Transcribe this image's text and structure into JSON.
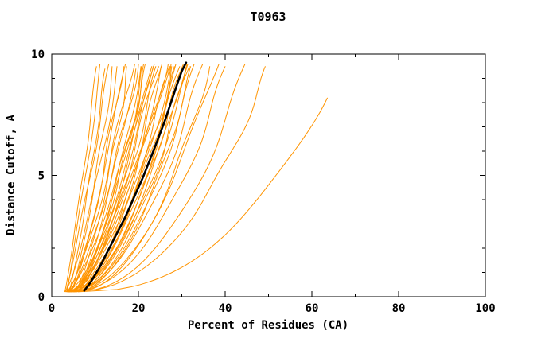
{
  "window": {
    "background": "#ffffff"
  },
  "chart_data": {
    "type": "line",
    "title": "T0963",
    "xlabel": "Percent of Residues (CA)",
    "ylabel": "Distance Cutoff, A",
    "xlim": [
      0,
      100
    ],
    "ylim": [
      0,
      10
    ],
    "x_ticks": [
      0,
      20,
      40,
      60,
      80,
      100
    ],
    "x_minor_ticks": [
      10,
      30,
      50,
      70,
      90
    ],
    "y_ticks": [
      0,
      5,
      10
    ],
    "y_minor_ticks": [
      1,
      2,
      3,
      4,
      6,
      7,
      8,
      9
    ],
    "grid": false,
    "legend": "none",
    "colors": {
      "model_lines": "#ff9400",
      "best_model_line": "#000000",
      "axis": "#000000",
      "background": "#ffffff"
    },
    "series_description": {
      "orange_curves": "Ensemble of model accuracy curves (distance cutoff vs percent of CA residues). Param format per curve: [x_start, x_top, shape_exp, y_top, wiggle_amp, wiggle_freq, wiggle_phase]; x(y) = x_start + (x_top - x_start)*((y-0.2)/(y_top-0.2))^shape_exp + wiggle_amp*sin(wiggle_freq*y+wiggle_phase)*(y/10)",
      "black_curve": "Highlighted (consensus/best) model curve, explicit [percent, distance_cutoff] points"
    },
    "curve_start_y": 0.2,
    "orange_curves": [
      [
        3.0,
        10.5,
        0.9,
        9.5,
        0.3,
        1.2,
        0.5
      ],
      [
        3.5,
        11.5,
        0.95,
        9.6,
        0.4,
        0.9,
        2.1
      ],
      [
        4.0,
        12.5,
        0.85,
        9.45,
        0.3,
        1.5,
        4.0
      ],
      [
        3.2,
        13.5,
        0.9,
        9.62,
        0.5,
        1.1,
        1.3
      ],
      [
        4.5,
        14.2,
        0.8,
        9.5,
        0.4,
        1.4,
        3.2
      ],
      [
        3.0,
        15.5,
        0.75,
        9.58,
        0.5,
        1.0,
        0.8
      ],
      [
        4.2,
        16.2,
        0.7,
        9.5,
        0.6,
        1.3,
        2.6
      ],
      [
        3.6,
        17.0,
        0.72,
        9.63,
        0.4,
        0.8,
        5.0
      ],
      [
        5.0,
        17.8,
        0.68,
        9.55,
        0.5,
        1.6,
        1.9
      ],
      [
        3.3,
        18.5,
        0.7,
        9.6,
        0.7,
        1.1,
        3.7
      ],
      [
        4.8,
        19.2,
        0.65,
        9.48,
        0.5,
        0.9,
        0.3
      ],
      [
        3.9,
        20.0,
        0.72,
        9.62,
        0.6,
        1.4,
        2.2
      ],
      [
        5.5,
        20.7,
        0.66,
        9.55,
        0.4,
        1.2,
        4.5
      ],
      [
        4.1,
        21.4,
        0.6,
        9.58,
        0.7,
        1.0,
        1.0
      ],
      [
        3.4,
        22.1,
        0.68,
        9.64,
        0.5,
        1.5,
        3.0
      ],
      [
        5.2,
        22.8,
        0.62,
        9.5,
        0.6,
        0.8,
        5.5
      ],
      [
        4.6,
        23.5,
        0.64,
        9.6,
        0.4,
        1.3,
        0.6
      ],
      [
        3.8,
        24.2,
        0.6,
        9.55,
        0.8,
        1.1,
        2.9
      ],
      [
        5.8,
        25.0,
        0.58,
        9.62,
        0.5,
        1.6,
        4.8
      ],
      [
        4.3,
        25.7,
        0.62,
        9.57,
        0.6,
        0.9,
        1.6
      ],
      [
        3.5,
        26.4,
        0.56,
        9.6,
        0.7,
        1.2,
        3.4
      ],
      [
        5.0,
        27.1,
        0.6,
        9.52,
        0.5,
        1.4,
        5.8
      ],
      [
        4.7,
        27.8,
        0.55,
        9.63,
        0.6,
        1.0,
        0.2
      ],
      [
        3.9,
        28.4,
        0.58,
        9.58,
        0.8,
        1.5,
        2.4
      ],
      [
        5.4,
        29.0,
        0.54,
        9.6,
        0.5,
        0.8,
        4.1
      ],
      [
        4.2,
        29.6,
        0.56,
        9.55,
        0.7,
        1.2,
        1.2
      ],
      [
        3.6,
        30.2,
        0.52,
        9.62,
        0.6,
        1.6,
        3.9
      ],
      [
        5.1,
        30.8,
        0.55,
        9.6,
        0.5,
        1.0,
        5.2
      ],
      [
        4.4,
        31.4,
        0.5,
        9.57,
        0.8,
        1.3,
        0.9
      ],
      [
        3.8,
        32.0,
        0.54,
        9.63,
        0.6,
        0.9,
        2.7
      ],
      [
        5.6,
        32.6,
        0.52,
        9.58,
        0.5,
        1.4,
        4.4
      ],
      [
        4.0,
        33.2,
        0.5,
        9.6,
        0.7,
        1.1,
        1.5
      ],
      [
        4.9,
        28.8,
        0.6,
        9.5,
        0.6,
        1.5,
        3.6
      ],
      [
        3.7,
        27.0,
        0.63,
        9.56,
        0.5,
        0.9,
        5.9
      ],
      [
        5.3,
        24.6,
        0.66,
        9.59,
        0.7,
        1.2,
        0.4
      ],
      [
        4.5,
        21.8,
        0.64,
        9.61,
        0.6,
        1.6,
        2.0
      ],
      [
        3.2,
        23.0,
        0.6,
        9.54,
        0.5,
        1.0,
        4.7
      ],
      [
        4.0,
        35.0,
        0.5,
        9.6,
        0.8,
        1.1,
        1.8
      ],
      [
        5.5,
        36.5,
        0.48,
        9.55,
        0.6,
        1.3,
        3.3
      ],
      [
        4.6,
        38.0,
        0.5,
        9.62,
        0.7,
        0.9,
        5.1
      ],
      [
        3.8,
        40.5,
        0.46,
        9.58,
        0.8,
        1.2,
        0.7
      ],
      [
        5.0,
        45.0,
        0.45,
        9.6,
        0.9,
        1.0,
        2.5
      ],
      [
        4.4,
        50.0,
        0.44,
        9.5,
        0.8,
        1.4,
        4.2
      ],
      [
        6.0,
        63.0,
        0.42,
        8.2,
        0.9,
        0.9,
        1.1
      ]
    ],
    "black_curve": {
      "points": [
        [
          7.5,
          0.25
        ],
        [
          9,
          0.6
        ],
        [
          11,
          1.2
        ],
        [
          13,
          1.9
        ],
        [
          15,
          2.6
        ],
        [
          17,
          3.3
        ],
        [
          19,
          4.1
        ],
        [
          21,
          4.9
        ],
        [
          23,
          5.8
        ],
        [
          24.5,
          6.5
        ],
        [
          26,
          7.2
        ],
        [
          27.5,
          8.0
        ],
        [
          29,
          8.8
        ],
        [
          30,
          9.3
        ],
        [
          31,
          9.65
        ]
      ]
    }
  }
}
